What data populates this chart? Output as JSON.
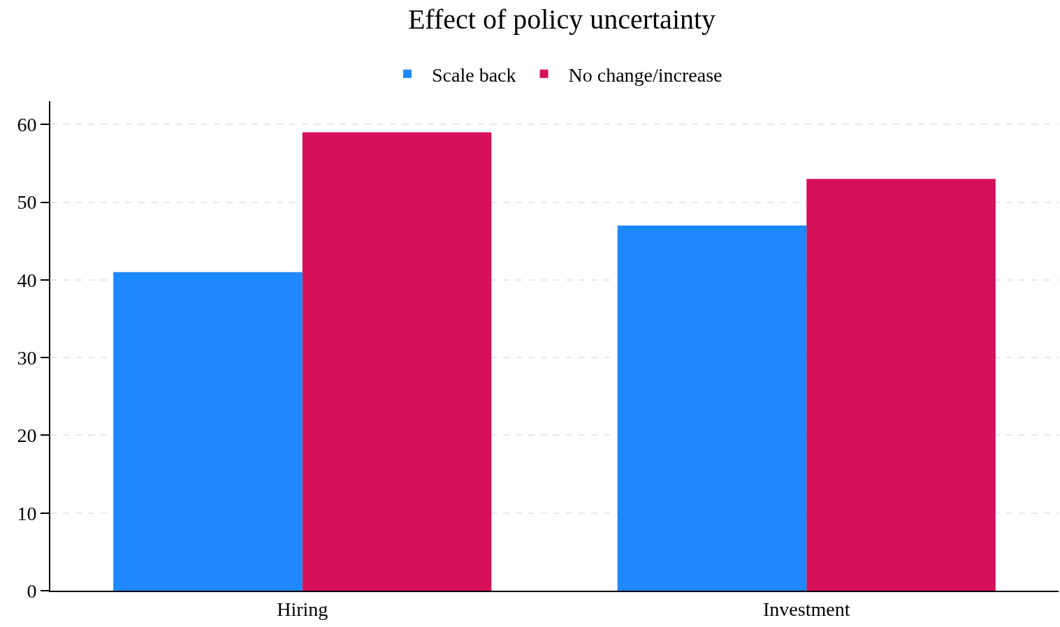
{
  "chart_data": {
    "type": "bar",
    "title": "Effect of policy uncertainty",
    "categories": [
      "Hiring",
      "Investment"
    ],
    "series": [
      {
        "name": "Scale back",
        "color": "#1e88ff",
        "values": [
          41,
          47
        ]
      },
      {
        "name": "No change/increase",
        "color": "#d41159",
        "values": [
          59,
          53
        ]
      }
    ],
    "ylim": [
      0,
      63
    ],
    "yticks": [
      0,
      10,
      20,
      30,
      40,
      50,
      60
    ],
    "grid": "y",
    "legend": "top"
  }
}
